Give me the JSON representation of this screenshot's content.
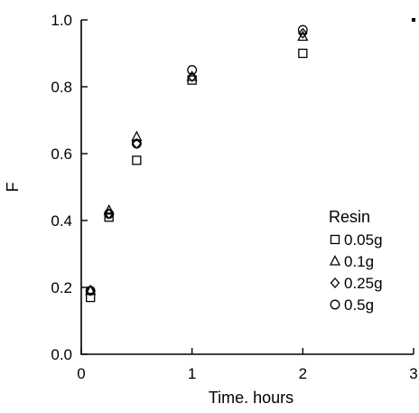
{
  "chart_data": {
    "type": "scatter",
    "xlabel": "Time. hours",
    "ylabel": "F",
    "xlim": [
      0,
      3
    ],
    "ylim": [
      0,
      1
    ],
    "xticks": [
      "0",
      "1",
      "2",
      "3"
    ],
    "yticks": [
      "0.0",
      "0.2",
      "0.4",
      "0.6",
      "0.8",
      "1.0"
    ],
    "grid": false,
    "legend": {
      "title": "Resin",
      "placement": "right"
    },
    "series": [
      {
        "name": "0.05g",
        "marker": "square",
        "color": "#000000",
        "x": [
          0.083,
          0.25,
          0.5,
          1,
          2
        ],
        "y": [
          0.17,
          0.41,
          0.58,
          0.82,
          0.9
        ]
      },
      {
        "name": "0.1g",
        "marker": "triangle",
        "color": "#000000",
        "x": [
          0.083,
          0.25,
          0.5,
          1,
          2
        ],
        "y": [
          0.19,
          0.43,
          0.65,
          0.83,
          0.95
        ]
      },
      {
        "name": "0.25g",
        "marker": "diamond",
        "color": "#000000",
        "x": [
          0.083,
          0.25,
          0.5,
          1,
          2
        ],
        "y": [
          0.19,
          0.42,
          0.63,
          0.83,
          0.96
        ]
      },
      {
        "name": "0.5g",
        "marker": "circle",
        "color": "#000000",
        "x": [
          0.083,
          0.25,
          0.5,
          1,
          2
        ],
        "y": [
          0.19,
          0.42,
          0.63,
          0.85,
          0.97
        ]
      }
    ]
  }
}
